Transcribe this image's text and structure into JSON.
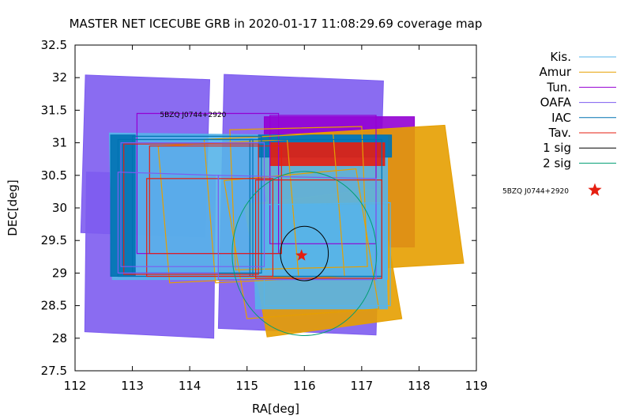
{
  "chart_data": {
    "type": "scatter",
    "title": "MASTER NET ICECUBE GRB in 2020-01-17 11:08:29.69 coverage map",
    "xlabel": "RA[deg]",
    "ylabel": "DEC[deg]",
    "xlim": [
      112,
      119
    ],
    "ylim": [
      27.5,
      32.5
    ],
    "x_ticks": [
      "112",
      "113",
      "114",
      "115",
      "116",
      "117",
      "118",
      "119"
    ],
    "y_ticks": [
      "27.5",
      "28",
      "28.5",
      "29",
      "29.5",
      "30",
      "30.5",
      "31",
      "31.5",
      "32",
      "32.5"
    ],
    "grid": false,
    "legend_position": "outside-right",
    "legend": [
      {
        "label": "Kis.",
        "color": "#56b4e9"
      },
      {
        "label": "Amur",
        "color": "#e69f00"
      },
      {
        "label": "Tun.",
        "color": "#9400d3"
      },
      {
        "label": "OAFA",
        "color": "#7d5cf0"
      },
      {
        "label": "IAC",
        "color": "#0072b2"
      },
      {
        "label": "Tav.",
        "color": "#e51e10"
      },
      {
        "label": "1 sig",
        "color": "#000000"
      },
      {
        "label": "2 sig",
        "color": "#009e73"
      },
      {
        "label": "5BZQ J0744+2920",
        "color": "#e51e10",
        "marker": "star"
      }
    ],
    "source": {
      "label": "5BZQ J0744+2920",
      "ra": 115.95,
      "dec": 29.27,
      "color": "#e51e10"
    },
    "error_circles": [
      {
        "name": "1 sig",
        "ra": 116.0,
        "dec": 29.3,
        "radius": 0.58,
        "color": "#000000"
      },
      {
        "name": "2 sig",
        "ra": 116.0,
        "dec": 29.3,
        "radius": 1.75,
        "color": "#009e73"
      }
    ],
    "annotation": {
      "text": "5BZQ J0744+2920",
      "ra": 113.48,
      "dec": 31.43
    },
    "fields": [
      {
        "telescope": "OAFA",
        "fill": true,
        "color": "#7d5cf0",
        "corners": [
          [
            112.18,
            32.04
          ],
          [
            114.35,
            31.97
          ],
          [
            114.27,
            29.55
          ],
          [
            112.1,
            29.62
          ]
        ]
      },
      {
        "telescope": "OAFA",
        "fill": true,
        "color": "#7d5cf0",
        "corners": [
          [
            112.2,
            30.55
          ],
          [
            114.45,
            30.5
          ],
          [
            114.42,
            28.0
          ],
          [
            112.17,
            28.1
          ]
        ]
      },
      {
        "telescope": "OAFA",
        "fill": true,
        "color": "#7d5cf0",
        "corners": [
          [
            114.6,
            32.05
          ],
          [
            117.38,
            31.95
          ],
          [
            117.25,
            28.05
          ],
          [
            114.5,
            28.15
          ]
        ]
      },
      {
        "telescope": "Tun.",
        "fill": true,
        "color": "#9400d3",
        "corners": [
          [
            115.3,
            31.4
          ],
          [
            117.92,
            31.4
          ],
          [
            117.92,
            29.4
          ],
          [
            115.3,
            29.4
          ]
        ]
      },
      {
        "telescope": "Amur",
        "fill": true,
        "color": "#e69f00",
        "corners": [
          [
            115.2,
            31.1
          ],
          [
            118.45,
            31.27
          ],
          [
            118.78,
            29.15
          ],
          [
            115.5,
            28.98
          ]
        ]
      },
      {
        "telescope": "Amur",
        "fill": true,
        "color": "#e69f00",
        "corners": [
          [
            114.95,
            30.05
          ],
          [
            117.3,
            30.3
          ],
          [
            117.7,
            28.3
          ],
          [
            115.35,
            28.02
          ]
        ]
      },
      {
        "telescope": "Kis.",
        "fill": true,
        "color": "#56b4e9",
        "corners": [
          [
            112.6,
            31.15
          ],
          [
            117.45,
            31.1
          ],
          [
            117.45,
            28.9
          ],
          [
            112.65,
            28.9
          ]
        ]
      },
      {
        "telescope": "Kis.",
        "fill": true,
        "color": "#56b4e9",
        "corners": [
          [
            115.1,
            30.05
          ],
          [
            117.4,
            30.05
          ],
          [
            117.45,
            28.45
          ],
          [
            115.15,
            28.45
          ]
        ]
      },
      {
        "telescope": "IAC",
        "fill": true,
        "color": "#0072b2",
        "corners": [
          [
            115.2,
            31.12
          ],
          [
            117.52,
            31.12
          ],
          [
            117.52,
            30.78
          ],
          [
            115.2,
            30.78
          ]
        ]
      },
      {
        "telescope": "IAC",
        "fill": true,
        "color": "#0072b2",
        "corners": [
          [
            112.62,
            31.12
          ],
          [
            113.05,
            31.12
          ],
          [
            113.05,
            28.95
          ],
          [
            112.62,
            28.95
          ]
        ]
      },
      {
        "telescope": "Tav.",
        "fill": true,
        "color": "#e51e10",
        "corners": [
          [
            115.4,
            31.0
          ],
          [
            117.4,
            31.0
          ],
          [
            117.4,
            30.65
          ],
          [
            115.4,
            30.65
          ]
        ]
      },
      {
        "telescope": "Tun.",
        "fill": false,
        "color": "#9400d3",
        "corners": [
          [
            113.08,
            31.45
          ],
          [
            115.55,
            31.45
          ],
          [
            115.55,
            29.3
          ],
          [
            113.08,
            29.3
          ]
        ]
      },
      {
        "telescope": "Tun.",
        "fill": false,
        "color": "#9400d3",
        "corners": [
          [
            115.4,
            31.42
          ],
          [
            117.25,
            31.42
          ],
          [
            117.25,
            29.45
          ],
          [
            115.4,
            29.45
          ]
        ]
      },
      {
        "telescope": "Amur",
        "fill": false,
        "color": "#e69f00",
        "corners": [
          [
            114.25,
            31.05
          ],
          [
            116.5,
            31.15
          ],
          [
            116.7,
            28.95
          ],
          [
            114.45,
            28.85
          ]
        ]
      },
      {
        "telescope": "Amur",
        "fill": false,
        "color": "#e69f00",
        "corners": [
          [
            114.7,
            31.2
          ],
          [
            117.0,
            31.25
          ],
          [
            117.1,
            29.1
          ],
          [
            114.8,
            29.05
          ]
        ]
      },
      {
        "telescope": "Amur",
        "fill": false,
        "color": "#e69f00",
        "corners": [
          [
            114.6,
            30.42
          ],
          [
            116.9,
            30.6
          ],
          [
            117.3,
            28.45
          ],
          [
            115.0,
            28.3
          ]
        ]
      },
      {
        "telescope": "Amur",
        "fill": false,
        "color": "#e69f00",
        "corners": [
          [
            113.45,
            30.95
          ],
          [
            115.7,
            31.05
          ],
          [
            115.9,
            28.95
          ],
          [
            113.65,
            28.85
          ]
        ]
      },
      {
        "telescope": "Kis.",
        "fill": false,
        "color": "#56b4e9",
        "corners": [
          [
            115.3,
            30.05
          ],
          [
            117.5,
            30.08
          ],
          [
            117.5,
            28.5
          ],
          [
            115.3,
            28.5
          ]
        ]
      },
      {
        "telescope": "IAC",
        "fill": false,
        "color": "#0072b2",
        "corners": [
          [
            112.75,
            31.05
          ],
          [
            115.1,
            31.05
          ],
          [
            115.1,
            28.95
          ],
          [
            112.75,
            28.95
          ]
        ]
      },
      {
        "telescope": "IAC",
        "fill": false,
        "color": "#0072b2",
        "corners": [
          [
            113.0,
            31.1
          ],
          [
            115.25,
            31.1
          ],
          [
            115.25,
            29.0
          ],
          [
            113.0,
            29.0
          ]
        ]
      },
      {
        "telescope": "IAC",
        "fill": false,
        "color": "#0072b2",
        "corners": [
          [
            115.05,
            31.05
          ],
          [
            117.35,
            31.05
          ],
          [
            117.35,
            28.95
          ],
          [
            115.05,
            28.95
          ]
        ]
      },
      {
        "telescope": "Tav.",
        "fill": false,
        "color": "#e51e10",
        "corners": [
          [
            112.85,
            30.98
          ],
          [
            115.2,
            30.98
          ],
          [
            115.2,
            28.98
          ],
          [
            112.85,
            28.98
          ]
        ]
      },
      {
        "telescope": "Tav.",
        "fill": false,
        "color": "#e51e10",
        "corners": [
          [
            115.15,
            30.43
          ],
          [
            117.35,
            30.43
          ],
          [
            117.35,
            28.92
          ],
          [
            115.15,
            28.92
          ]
        ]
      },
      {
        "telescope": "Tav.",
        "fill": false,
        "color": "#e51e10",
        "corners": [
          [
            113.25,
            30.45
          ],
          [
            115.45,
            30.45
          ],
          [
            115.45,
            28.95
          ],
          [
            113.25,
            28.95
          ]
        ]
      },
      {
        "telescope": "Tav.",
        "fill": false,
        "color": "#e51e10",
        "corners": [
          [
            113.3,
            30.95
          ],
          [
            115.6,
            30.95
          ],
          [
            115.6,
            29.3
          ],
          [
            113.3,
            29.3
          ]
        ]
      },
      {
        "telescope": "OAFA",
        "fill": false,
        "color": "#7d5cf0",
        "corners": [
          [
            112.75,
            30.55
          ],
          [
            114.5,
            30.5
          ],
          [
            114.5,
            29.0
          ],
          [
            112.75,
            29.0
          ]
        ]
      },
      {
        "telescope": "OAFA",
        "fill": false,
        "color": "#7d5cf0",
        "corners": [
          [
            114.5,
            30.5
          ],
          [
            117.25,
            30.45
          ],
          [
            117.25,
            28.9
          ],
          [
            114.5,
            28.9
          ]
        ]
      },
      {
        "telescope": "OAFA",
        "fill": false,
        "color": "#7d5cf0",
        "corners": [
          [
            112.8,
            31.0
          ],
          [
            115.3,
            31.0
          ],
          [
            115.3,
            29.1
          ],
          [
            112.8,
            29.1
          ]
        ]
      }
    ]
  }
}
